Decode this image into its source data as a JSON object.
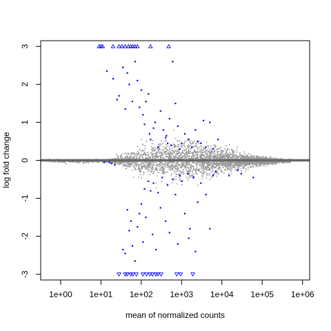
{
  "chart_data": {
    "type": "scatter",
    "title": "",
    "xlabel": "mean of normalized counts",
    "ylabel": "log fold change",
    "x_scale": "log10",
    "xlim": [
      0.32,
      1500000
    ],
    "ylim": [
      -3.15,
      3.15
    ],
    "x_ticks": [
      1,
      10,
      100,
      1000,
      10000,
      100000,
      1000000
    ],
    "x_tick_labels": [
      "1e+00",
      "1e+01",
      "1e+02",
      "1e+03",
      "1e+04",
      "1e+05",
      "1e+06"
    ],
    "y_ticks": [
      -3,
      -2,
      -1,
      0,
      1,
      2,
      3
    ],
    "y_tick_labels": [
      "-3",
      "-2",
      "-1",
      "0",
      "1",
      "2",
      "3"
    ],
    "reference_line": {
      "y": 0,
      "color": "#666666"
    },
    "colors": {
      "non_significant": "#999999",
      "significant": "#0000ff"
    },
    "clipped_markers": {
      "top_y": 3,
      "top_x": [
        9,
        10,
        11,
        20,
        28,
        33,
        40,
        48,
        55,
        62,
        70,
        80,
        170,
        480
      ],
      "bottom_y": -3,
      "bottom_x": [
        28,
        40,
        45,
        55,
        62,
        75,
        110,
        135,
        165,
        190,
        230,
        260,
        310,
        760,
        950,
        1900
      ]
    },
    "significant_points": [
      [
        14,
        2.35
      ],
      [
        20,
        2.15
      ],
      [
        25,
        1.6
      ],
      [
        28,
        1.7
      ],
      [
        35,
        2.45
      ],
      [
        40,
        1.35
      ],
      [
        45,
        2.3
      ],
      [
        50,
        2.0
      ],
      [
        60,
        1.55
      ],
      [
        70,
        2.6
      ],
      [
        80,
        2.1
      ],
      [
        90,
        1.4
      ],
      [
        100,
        1.85
      ],
      [
        110,
        1.2
      ],
      [
        120,
        0.95
      ],
      [
        130,
        1.55
      ],
      [
        150,
        1.75
      ],
      [
        160,
        0.7
      ],
      [
        170,
        0.55
      ],
      [
        200,
        0.85
      ],
      [
        220,
        1.0
      ],
      [
        260,
        0.35
      ],
      [
        300,
        1.3
      ],
      [
        350,
        0.8
      ],
      [
        400,
        0.6
      ],
      [
        420,
        0.65
      ],
      [
        450,
        0.45
      ],
      [
        500,
        1.1
      ],
      [
        550,
        0.4
      ],
      [
        600,
        2.6
      ],
      [
        700,
        1.5
      ],
      [
        800,
        0.9
      ],
      [
        900,
        0.3
      ],
      [
        1000,
        0.45
      ],
      [
        1200,
        0.7
      ],
      [
        1500,
        0.55
      ],
      [
        1800,
        0.35
      ],
      [
        2200,
        0.8
      ],
      [
        2500,
        0.5
      ],
      [
        3000,
        0.45
      ],
      [
        3500,
        1.05
      ],
      [
        4000,
        0.35
      ],
      [
        5000,
        1.0
      ],
      [
        6000,
        0.3
      ],
      [
        8000,
        0.55
      ],
      [
        12,
        -0.05
      ],
      [
        16,
        -0.05
      ],
      [
        18,
        -0.08
      ],
      [
        22,
        -0.12
      ],
      [
        35,
        -2.35
      ],
      [
        40,
        -2.45
      ],
      [
        45,
        -1.3
      ],
      [
        50,
        -1.85
      ],
      [
        55,
        -1.6
      ],
      [
        60,
        -2.25
      ],
      [
        70,
        -2.65
      ],
      [
        80,
        -1.75
      ],
      [
        90,
        -1.4
      ],
      [
        100,
        -1.15
      ],
      [
        110,
        -2.15
      ],
      [
        120,
        -0.75
      ],
      [
        130,
        -1.5
      ],
      [
        150,
        -0.55
      ],
      [
        170,
        -0.8
      ],
      [
        190,
        -1.95
      ],
      [
        200,
        -0.6
      ],
      [
        230,
        -2.35
      ],
      [
        260,
        -0.85
      ],
      [
        300,
        -1.25
      ],
      [
        330,
        -0.45
      ],
      [
        400,
        -1.6
      ],
      [
        450,
        -0.65
      ],
      [
        500,
        -1.9
      ],
      [
        600,
        -0.5
      ],
      [
        700,
        -0.9
      ],
      [
        800,
        -2.2
      ],
      [
        900,
        -0.4
      ],
      [
        1000,
        -0.55
      ],
      [
        1200,
        -1.4
      ],
      [
        1400,
        -0.35
      ],
      [
        1600,
        -1.8
      ],
      [
        2000,
        -0.45
      ],
      [
        2500,
        -1.1
      ],
      [
        3000,
        -0.6
      ],
      [
        4000,
        -0.9
      ],
      [
        5000,
        -1.8
      ],
      [
        6000,
        -0.4
      ],
      [
        7000,
        -0.3
      ],
      [
        15000,
        -0.4
      ],
      [
        25000,
        -0.25
      ],
      [
        30000,
        -0.35
      ],
      [
        60000,
        -0.45
      ],
      [
        1500,
        -2.05
      ],
      [
        2200,
        -2.4
      ]
    ]
  }
}
